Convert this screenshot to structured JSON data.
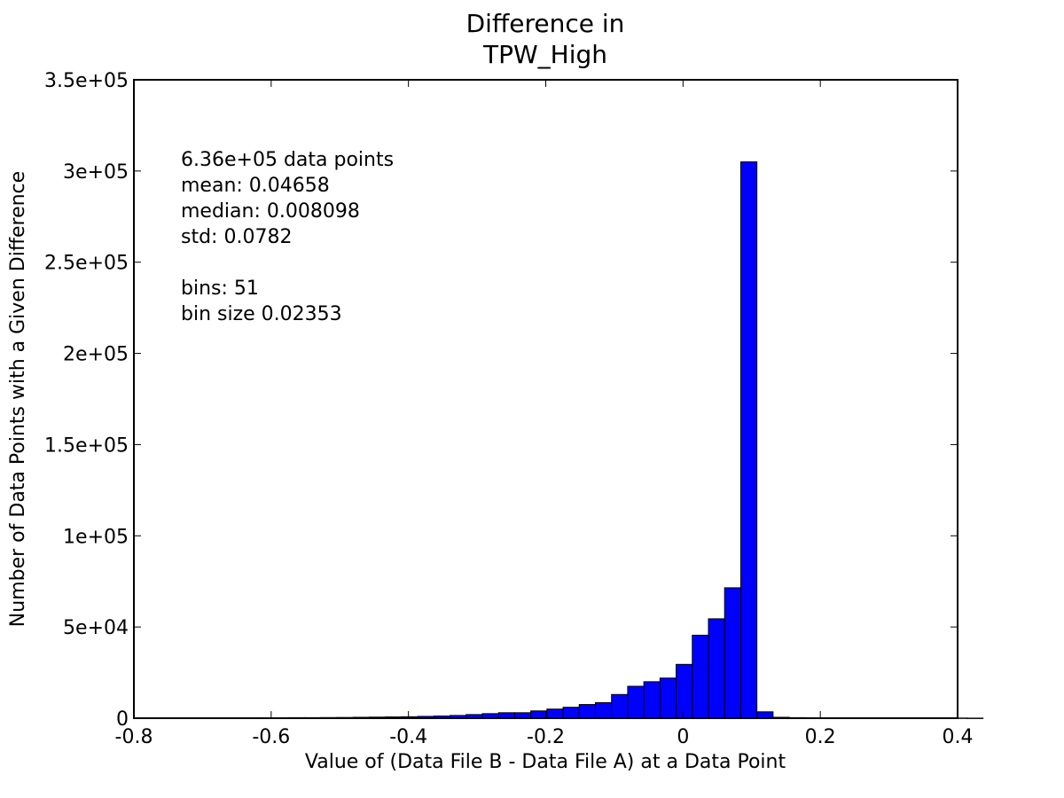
{
  "chart_data": {
    "type": "bar",
    "title_lines": [
      "Difference in",
      "TPW_High"
    ],
    "xlabel": "Value of (Data File B - Data File A) at a Data Point",
    "ylabel": "Number of Data Points with a Given Difference",
    "xlim": [
      -0.8,
      0.4
    ],
    "ylim": [
      0,
      350000
    ],
    "xticks": [
      -0.8,
      -0.6,
      -0.4,
      -0.2,
      0,
      0.2,
      0.4
    ],
    "xtick_labels": [
      "-0.8",
      "-0.6",
      "-0.4",
      "-0.2",
      "0",
      "0.2",
      "0.4"
    ],
    "yticks": [
      0,
      50000,
      100000,
      150000,
      200000,
      250000,
      300000,
      350000
    ],
    "ytick_labels": [
      "0",
      "5e+04",
      "1e+05",
      "1.5e+05",
      "2e+05",
      "2.5e+05",
      "3e+05",
      "3.5e+05"
    ],
    "annotations": [
      "6.36e+05 data points",
      "mean: 0.04658",
      "median: 0.008098",
      "std: 0.0782",
      "",
      "bins: 51",
      "bin size 0.02353"
    ],
    "bin_start": -0.763,
    "bin_width": 0.02353,
    "values": [
      200,
      200,
      200,
      200,
      200,
      200,
      250,
      250,
      300,
      300,
      350,
      400,
      500,
      600,
      700,
      800,
      1000,
      1200,
      1500,
      2000,
      2500,
      3000,
      3000,
      4000,
      5000,
      6000,
      7500,
      8500,
      13000,
      17500,
      20000,
      22000,
      29500,
      45500,
      54500,
      71500,
      305000,
      3500,
      500,
      300,
      200,
      200,
      150,
      100,
      100,
      100,
      100,
      100,
      100,
      100,
      50
    ],
    "bar_color": "#0000ff"
  }
}
